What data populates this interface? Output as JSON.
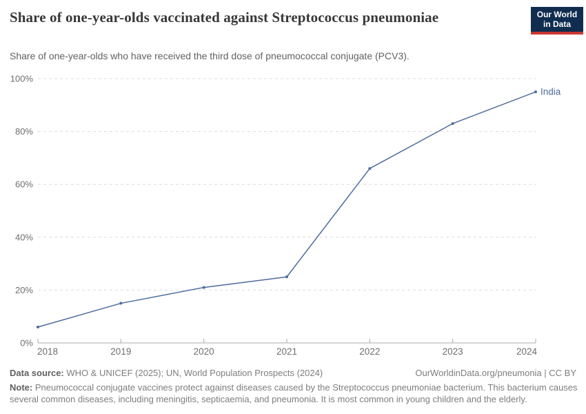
{
  "header": {
    "title": "Share of one-year-olds vaccinated against Streptococcus pneumoniae",
    "subtitle": "Share of one-year-olds who have received the third dose of pneumococcal conjugate (PCV3).",
    "logo": {
      "line1": "Our World",
      "line2": "in Data"
    }
  },
  "chart_data": {
    "type": "line",
    "title": "Share of one-year-olds vaccinated against Streptococcus pneumoniae",
    "subtitle": "Share of one-year-olds who have received the third dose of pneumococcal conjugate (PCV3).",
    "x": [
      2018,
      2019,
      2020,
      2021,
      2022,
      2023,
      2024
    ],
    "series": [
      {
        "name": "India",
        "values": [
          6,
          15,
          21,
          25,
          66,
          83,
          95
        ],
        "color": "#4c6a9c"
      }
    ],
    "xlabel": "",
    "ylabel": "",
    "ylim": [
      0,
      100
    ],
    "yticks": [
      0,
      20,
      40,
      60,
      80,
      100
    ],
    "ytick_labels": [
      "0%",
      "20%",
      "40%",
      "60%",
      "80%",
      "100%"
    ],
    "xtick_labels": [
      "2018",
      "2019",
      "2020",
      "2021",
      "2022",
      "2023",
      "2024"
    ],
    "grid": "horizontal-dashed",
    "legend_position": "end-of-line-label",
    "end_label": "India"
  },
  "footer": {
    "source_label": "Data source:",
    "source_text": " WHO & UNICEF (2025); UN, World Population Prospects (2024)",
    "rights": "OurWorldinData.org/pneumonia | CC BY",
    "note_label": "Note:",
    "note_text": " Pneumococcal conjugate vaccines protect against diseases caused by the Streptococcus pneumoniae bacterium. This bacterium causes several common diseases, including meningitis, septicaemia, and pneumonia. It is most common in young children and the elderly."
  },
  "colors": {
    "accent_line": "#4c6a9c",
    "logo_navy": "#102d50",
    "logo_red": "#cc3731",
    "gridline": "#dcdcdc",
    "axis": "#a8a8a8",
    "tick_text": "#6e6e6e",
    "title_text": "#383838",
    "body_text": "#7d7d7d"
  }
}
